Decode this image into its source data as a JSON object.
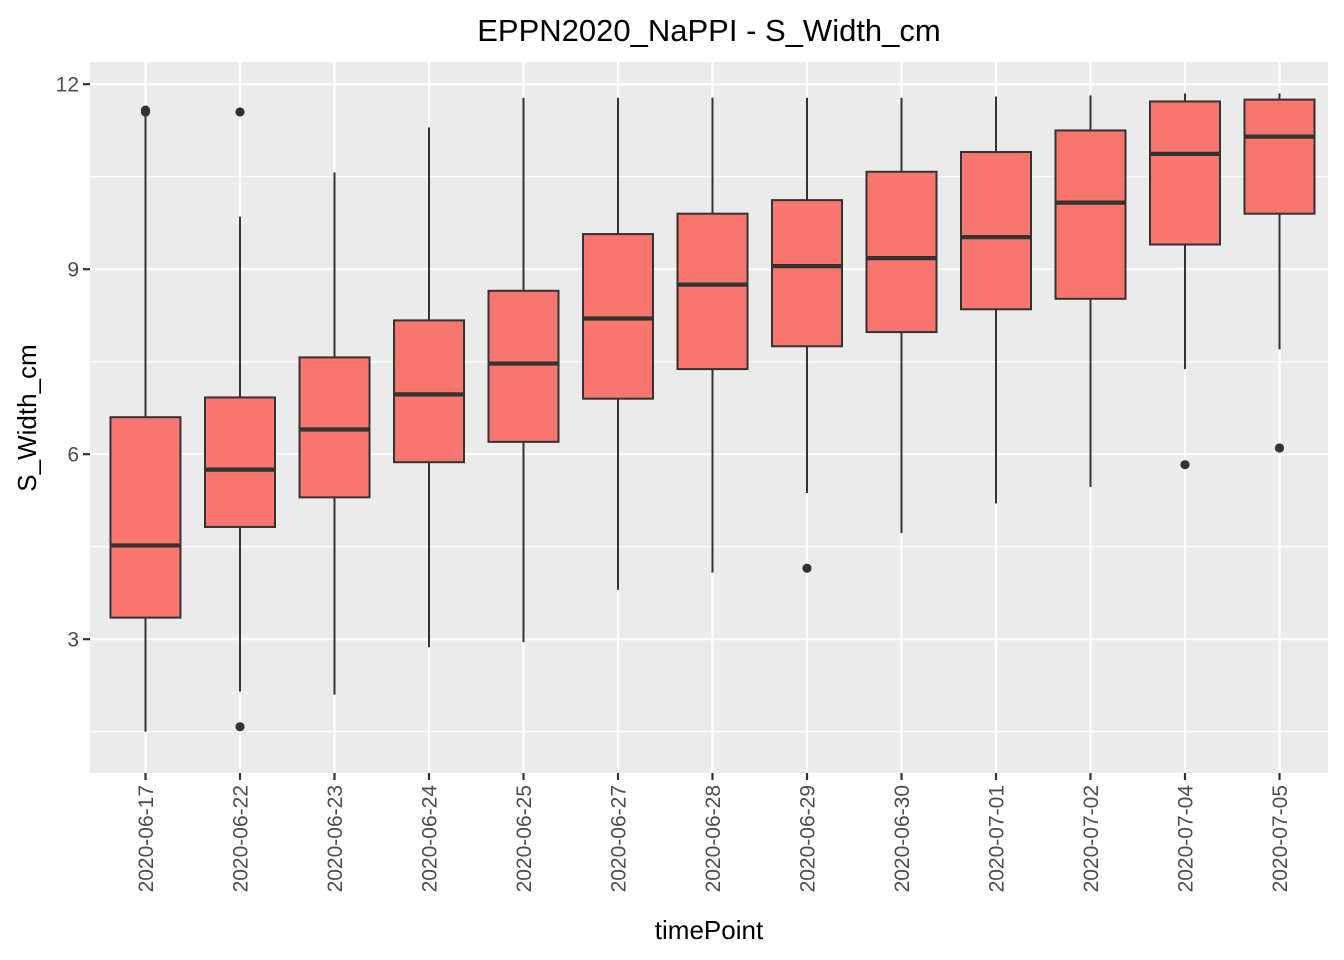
{
  "chart_data": {
    "type": "boxplot",
    "title": "EPPN2020_NaPPI - S_Width_cm",
    "xlabel": "timePoint",
    "ylabel": "S_Width_cm",
    "ylim": [
      0.83,
      12.36
    ],
    "yticks": [
      3,
      6,
      9,
      12
    ],
    "grid": true,
    "legend": "none",
    "colors": {
      "panel": "#EBEBEB",
      "grid": "#FFFFFF",
      "box_fill": "#F8766D",
      "box_line": "#333333",
      "tick_text": "#4D4D4D"
    },
    "categories": [
      "2020-06-17",
      "2020-06-22",
      "2020-06-23",
      "2020-06-24",
      "2020-06-25",
      "2020-06-27",
      "2020-06-28",
      "2020-06-29",
      "2020-06-30",
      "2020-07-01",
      "2020-07-02",
      "2020-07-04",
      "2020-07-05"
    ],
    "boxes": [
      {
        "whisker_low": 1.5,
        "q1": 3.35,
        "median": 4.52,
        "q3": 6.6,
        "whisker_high": 11.5,
        "outliers": [
          11.58,
          11.55
        ]
      },
      {
        "whisker_low": 2.15,
        "q1": 4.82,
        "median": 5.75,
        "q3": 6.92,
        "whisker_high": 9.85,
        "outliers": [
          11.55,
          1.58
        ]
      },
      {
        "whisker_low": 2.1,
        "q1": 5.3,
        "median": 6.4,
        "q3": 7.57,
        "whisker_high": 10.57,
        "outliers": []
      },
      {
        "whisker_low": 2.87,
        "q1": 5.87,
        "median": 6.97,
        "q3": 8.17,
        "whisker_high": 11.3,
        "outliers": []
      },
      {
        "whisker_low": 2.95,
        "q1": 6.2,
        "median": 7.47,
        "q3": 8.65,
        "whisker_high": 11.78,
        "outliers": []
      },
      {
        "whisker_low": 3.8,
        "q1": 6.9,
        "median": 8.2,
        "q3": 9.57,
        "whisker_high": 11.78,
        "outliers": []
      },
      {
        "whisker_low": 4.08,
        "q1": 7.38,
        "median": 8.75,
        "q3": 9.9,
        "whisker_high": 11.78,
        "outliers": []
      },
      {
        "whisker_low": 5.37,
        "q1": 7.75,
        "median": 9.05,
        "q3": 10.12,
        "whisker_high": 11.78,
        "outliers": [
          4.15
        ]
      },
      {
        "whisker_low": 4.72,
        "q1": 7.98,
        "median": 9.18,
        "q3": 10.58,
        "whisker_high": 11.78,
        "outliers": []
      },
      {
        "whisker_low": 5.2,
        "q1": 8.35,
        "median": 9.52,
        "q3": 10.9,
        "whisker_high": 11.8,
        "outliers": []
      },
      {
        "whisker_low": 5.47,
        "q1": 8.52,
        "median": 10.08,
        "q3": 11.25,
        "whisker_high": 11.82,
        "outliers": []
      },
      {
        "whisker_low": 7.38,
        "q1": 9.4,
        "median": 10.87,
        "q3": 11.72,
        "whisker_high": 11.85,
        "outliers": [
          5.83
        ]
      },
      {
        "whisker_low": 7.7,
        "q1": 9.9,
        "median": 11.15,
        "q3": 11.75,
        "whisker_high": 11.85,
        "outliers": [
          6.1
        ]
      }
    ]
  }
}
